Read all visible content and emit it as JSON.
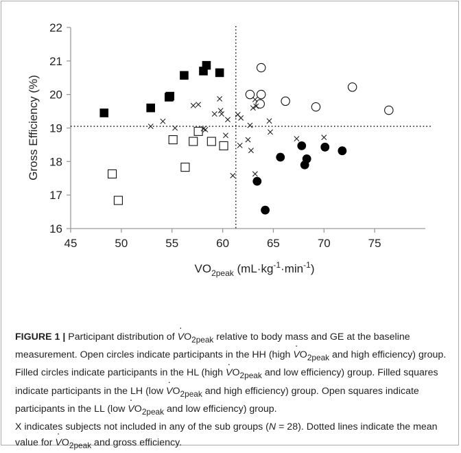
{
  "chart_data": {
    "type": "scatter",
    "xlabel": "VO2peak (mL·kg-1·min-1)",
    "ylabel": "Gross Efficiency  (%)",
    "xlim": [
      45,
      80
    ],
    "ylim": [
      16,
      22
    ],
    "x_ticks": [
      "45",
      "50",
      "55",
      "60",
      "65",
      "70",
      "75"
    ],
    "y_ticks": [
      "16",
      "17",
      "18",
      "19",
      "20",
      "21",
      "22"
    ],
    "grid": false,
    "reference_lines": {
      "x_mean": 61.3,
      "y_mean": 19.05,
      "style": "dotted"
    },
    "series": [
      {
        "marker": "open-circle",
        "points": [
          [
            62.7,
            20.0
          ],
          [
            63.8,
            20.8
          ],
          [
            63.8,
            20.0
          ],
          [
            63.7,
            19.72
          ],
          [
            66.2,
            19.8
          ],
          [
            69.2,
            19.63
          ],
          [
            72.8,
            20.22
          ],
          [
            76.4,
            19.53
          ]
        ]
      },
      {
        "marker": "filled-circle",
        "points": [
          [
            63.4,
            17.41
          ],
          [
            64.2,
            16.55
          ],
          [
            65.7,
            18.13
          ],
          [
            67.8,
            18.47
          ],
          [
            68.1,
            17.9
          ],
          [
            68.3,
            18.08
          ],
          [
            70.1,
            18.43
          ],
          [
            71.8,
            18.32
          ]
        ]
      },
      {
        "marker": "filled-square",
        "points": [
          [
            48.3,
            19.45
          ],
          [
            52.9,
            19.6
          ],
          [
            54.7,
            19.92
          ],
          [
            54.8,
            19.95
          ],
          [
            56.2,
            20.57
          ],
          [
            58.1,
            20.7
          ],
          [
            58.4,
            20.87
          ],
          [
            59.7,
            20.65
          ]
        ]
      },
      {
        "marker": "open-square",
        "points": [
          [
            49.1,
            17.63
          ],
          [
            49.7,
            16.84
          ],
          [
            55.1,
            18.65
          ],
          [
            56.3,
            17.83
          ],
          [
            57.1,
            18.6
          ],
          [
            57.6,
            18.9
          ],
          [
            58.9,
            18.6
          ],
          [
            60.1,
            18.47
          ]
        ]
      },
      {
        "marker": "x",
        "points": [
          [
            52.9,
            19.05
          ],
          [
            54.1,
            19.2
          ],
          [
            55.3,
            19.0
          ],
          [
            57.1,
            19.67
          ],
          [
            57.6,
            19.7
          ],
          [
            58.1,
            18.98
          ],
          [
            58.3,
            18.95
          ],
          [
            59.2,
            19.42
          ],
          [
            59.7,
            19.87
          ],
          [
            59.8,
            19.52
          ],
          [
            59.9,
            19.42
          ],
          [
            60.3,
            18.78
          ],
          [
            60.5,
            19.25
          ],
          [
            61.0,
            17.58
          ],
          [
            61.5,
            19.4
          ],
          [
            61.8,
            19.3
          ],
          [
            61.7,
            18.48
          ],
          [
            62.5,
            18.65
          ],
          [
            62.7,
            19.08
          ],
          [
            62.8,
            18.33
          ],
          [
            63.0,
            19.6
          ],
          [
            63.2,
            17.63
          ],
          [
            63.2,
            19.85
          ],
          [
            63.3,
            19.65
          ],
          [
            64.6,
            19.21
          ],
          [
            64.7,
            18.88
          ],
          [
            67.3,
            18.68
          ],
          [
            70.0,
            18.72
          ]
        ]
      }
    ]
  },
  "caption": {
    "label": "FIGURE 1 |",
    "t1": " Participant distribution of ",
    "t2": " relative to body mass and GE at the baseline measurement. Open circles indicate participants in the HH (high ",
    "t3": " and high efficiency) group. Filled circles indicate participants in the HL (high ",
    "t4": " and low efficiency) group. Filled squares indicate participants in the LH (low ",
    "t5": " and high efficiency) group. Open squares indicate participants in the LL (low ",
    "t6": " and low efficiency) group.",
    "t7": "X indicates subjects not included in any of the sub groups (",
    "n_label": "N",
    "t8": " = 28). Dotted lines indicate the mean value for ",
    "t9": " and gross efficiency.",
    "v_letter": "V",
    "o2": "O",
    "sub": "2peak"
  }
}
